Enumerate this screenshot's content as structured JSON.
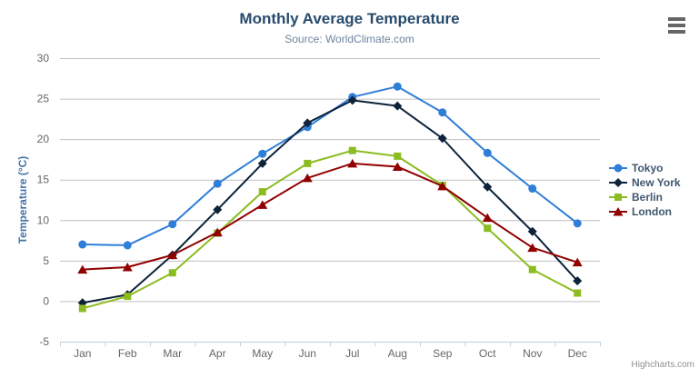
{
  "title": "Monthly Average Temperature",
  "subtitle": "Source: WorldClimate.com",
  "credit": "Highcharts.com",
  "context_menu_icon": "hamburger-icon",
  "colors": {
    "title": "#274b6d",
    "subtitle": "#6d869f",
    "axis_label": "#666666",
    "y_axis_title": "#4572a7",
    "gridline": "#c0c0c0",
    "axis_line": "#c0d0e0",
    "legend_text": "#3e576f",
    "credit": "#909090",
    "background": "#ffffff"
  },
  "chart_data": {
    "type": "line",
    "title": "Monthly Average Temperature",
    "subtitle": "Source: WorldClimate.com",
    "xlabel": "",
    "ylabel": "Temperature (°C)",
    "ylim": [
      -5,
      30
    ],
    "ytick_step": 5,
    "grid": true,
    "legend_position": "right",
    "categories": [
      "Jan",
      "Feb",
      "Mar",
      "Apr",
      "May",
      "Jun",
      "Jul",
      "Aug",
      "Sep",
      "Oct",
      "Nov",
      "Dec"
    ],
    "series": [
      {
        "name": "Tokyo",
        "color": "#2f7ed8",
        "marker": "circle",
        "values": [
          7.0,
          6.9,
          9.5,
          14.5,
          18.2,
          21.5,
          25.2,
          26.5,
          23.3,
          18.3,
          13.9,
          9.6
        ]
      },
      {
        "name": "New York",
        "color": "#0d233a",
        "marker": "diamond",
        "values": [
          -0.2,
          0.8,
          5.7,
          11.3,
          17.0,
          22.0,
          24.8,
          24.1,
          20.1,
          14.1,
          8.6,
          2.5
        ]
      },
      {
        "name": "Berlin",
        "color": "#8bbc21",
        "marker": "square",
        "values": [
          -0.9,
          0.6,
          3.5,
          8.4,
          13.5,
          17.0,
          18.6,
          17.9,
          14.3,
          9.0,
          3.9,
          1.0
        ]
      },
      {
        "name": "London",
        "color": "#910000",
        "marker": "triangle",
        "values": [
          3.9,
          4.2,
          5.7,
          8.5,
          11.9,
          15.2,
          17.0,
          16.6,
          14.2,
          10.3,
          6.6,
          4.8
        ]
      }
    ]
  }
}
